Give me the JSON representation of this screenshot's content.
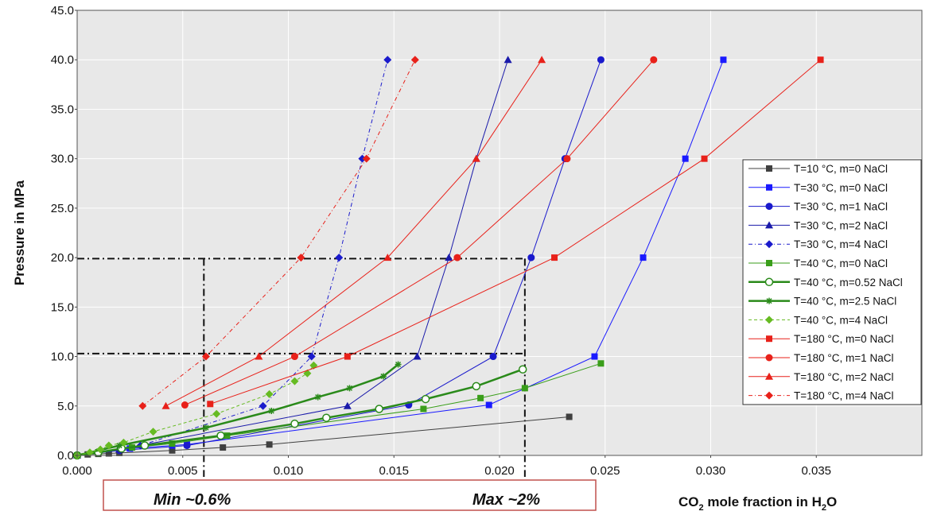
{
  "chart_data": {
    "type": "line",
    "title": "",
    "xlabel_main": "CO",
    "xlabel_sub": "2",
    "xlabel_rest": " mole fraction in H",
    "xlabel_sub2": "2",
    "xlabel_end": "O",
    "ylabel": "Pressure in MPa",
    "xlim": [
      0,
      0.04
    ],
    "ylim": [
      0,
      45
    ],
    "xticks": [
      "0.000",
      "0.005",
      "0.010",
      "0.015",
      "0.020",
      "0.025",
      "0.030",
      "0.035"
    ],
    "xtick_values": [
      0,
      0.005,
      0.01,
      0.015,
      0.02,
      0.025,
      0.03,
      0.035
    ],
    "yticks": [
      "0.0",
      "5.0",
      "10.0",
      "15.0",
      "20.0",
      "25.0",
      "30.0",
      "35.0",
      "40.0",
      "45.0"
    ],
    "ytick_values": [
      0,
      5,
      10,
      15,
      20,
      25,
      30,
      35,
      40,
      45
    ],
    "grid": true,
    "legend_position": "right",
    "annotations": {
      "min_label": "Min ~0.6%",
      "max_label": "Max ~2%",
      "x_min": 0.006,
      "x_max": 0.0212,
      "y_low": 10.3,
      "y_high": 19.9
    },
    "series": [
      {
        "name": "T=10 °C, m=0 NaCl",
        "color": "#404040",
        "marker": "square",
        "dash": "solid",
        "width": 1,
        "x": [
          0,
          0.0005,
          0.001,
          0.0015,
          0.002,
          0.0045,
          0.0069,
          0.0091,
          0.0233
        ],
        "y": [
          0,
          0.1,
          0.15,
          0.2,
          0.25,
          0.5,
          0.8,
          1.1,
          3.9
        ]
      },
      {
        "name": "T=30 °C, m=0 NaCl",
        "color": "#1a1aff",
        "marker": "square",
        "dash": "solid",
        "width": 1,
        "x": [
          0,
          0.001,
          0.0025,
          0.0045,
          0.0052,
          0.0195,
          0.0245,
          0.0268,
          0.0288,
          0.0306
        ],
        "y": [
          0,
          0.3,
          0.7,
          1.0,
          1.1,
          5.1,
          10.0,
          20.0,
          30.0,
          40.0
        ]
      },
      {
        "name": "T=30 °C, m=1 NaCl",
        "color": "#1a1acc",
        "marker": "circle",
        "dash": "solid",
        "width": 1,
        "x": [
          0,
          0.002,
          0.0052,
          0.0157,
          0.0197,
          0.0215,
          0.0231,
          0.0248
        ],
        "y": [
          0,
          0.5,
          1.0,
          5.1,
          10.0,
          20.0,
          30.0,
          40.0
        ]
      },
      {
        "name": "T=30 °C, m=2 NaCl",
        "color": "#1a1aaa",
        "marker": "triangle",
        "dash": "solid",
        "width": 1,
        "x": [
          0,
          0.002,
          0.0128,
          0.0161,
          0.0176,
          0.0189,
          0.0204
        ],
        "y": [
          0,
          0.6,
          5.0,
          10.0,
          20.0,
          30.0,
          40.0
        ]
      },
      {
        "name": "T=30 °C, m=4 NaCl",
        "color": "#1a1acc",
        "marker": "diamond",
        "dash": "dashdot",
        "width": 1,
        "x": [
          0.003,
          0.0088,
          0.0111,
          0.0124,
          0.0135,
          0.0147
        ],
        "y": [
          1.0,
          5.0,
          10.0,
          20.0,
          30.0,
          40.0
        ]
      },
      {
        "name": "T=40 °C, m=0 NaCl",
        "color": "#3a9e1a",
        "marker": "square",
        "dash": "solid",
        "width": 1,
        "x": [
          0,
          0.001,
          0.0026,
          0.0045,
          0.0071,
          0.0164,
          0.0191,
          0.0212,
          0.0248
        ],
        "y": [
          0,
          0.3,
          0.8,
          1.2,
          2.0,
          4.7,
          5.8,
          6.8,
          9.3
        ]
      },
      {
        "name": "T=40 °C, m=0.52 NaCl",
        "color": "#2a8a1a",
        "marker": "circle-open",
        "dash": "solid",
        "width": 2.5,
        "x": [
          0,
          0.001,
          0.0021,
          0.0032,
          0.0068,
          0.0103,
          0.0118,
          0.0143,
          0.0165,
          0.0189,
          0.0211
        ],
        "y": [
          0,
          0.3,
          0.7,
          1.0,
          2.0,
          3.2,
          3.8,
          4.7,
          5.7,
          7.0,
          8.7
        ]
      },
      {
        "name": "T=40 °C, m=2.5   NaCl",
        "color": "#2a8a1a",
        "marker": "star",
        "dash": "solid",
        "width": 2.5,
        "x": [
          0,
          0.002,
          0.0061,
          0.0092,
          0.0114,
          0.0129,
          0.0145,
          0.0152
        ],
        "y": [
          0,
          1.0,
          2.8,
          4.5,
          5.9,
          6.8,
          8.0,
          9.2
        ]
      },
      {
        "name": "T=40 °C, m=4 NaCl",
        "color": "#66bb22",
        "marker": "diamond",
        "dash": "dashed",
        "width": 1,
        "x": [
          0,
          0.0006,
          0.0011,
          0.0015,
          0.0022,
          0.0036,
          0.0066,
          0.0091,
          0.0103,
          0.0109,
          0.0112
        ],
        "y": [
          0,
          0.3,
          0.6,
          1.0,
          1.3,
          2.4,
          4.2,
          6.2,
          7.5,
          8.3,
          9.1
        ]
      },
      {
        "name": "T=180 °C, m=0 NaCl",
        "color": "#e8211a",
        "marker": "square",
        "dash": "solid",
        "width": 1,
        "x": [
          0.0063,
          0.0128,
          0.0226,
          0.0297,
          0.0352
        ],
        "y": [
          5.2,
          10.0,
          20.0,
          30.0,
          40.0
        ]
      },
      {
        "name": "T=180 °C, m=1 NaCl",
        "color": "#e8211a",
        "marker": "circle",
        "dash": "solid",
        "width": 1,
        "x": [
          0.0051,
          0.0103,
          0.018,
          0.0232,
          0.0273
        ],
        "y": [
          5.1,
          10.0,
          20.0,
          30.0,
          40.0
        ]
      },
      {
        "name": "T=180 °C, m=2 NaCl",
        "color": "#e8211a",
        "marker": "triangle",
        "dash": "solid",
        "width": 1,
        "x": [
          0.0042,
          0.0086,
          0.0147,
          0.0189,
          0.022
        ],
        "y": [
          5.0,
          10.0,
          20.0,
          30.0,
          40.0
        ]
      },
      {
        "name": "T=180 °C, m=4 NaCl",
        "color": "#e8211a",
        "marker": "diamond",
        "dash": "dashdot",
        "width": 1,
        "x": [
          0.0031,
          0.0061,
          0.0106,
          0.0137,
          0.016
        ],
        "y": [
          5.0,
          10.0,
          20.0,
          30.0,
          40.0
        ]
      }
    ]
  }
}
